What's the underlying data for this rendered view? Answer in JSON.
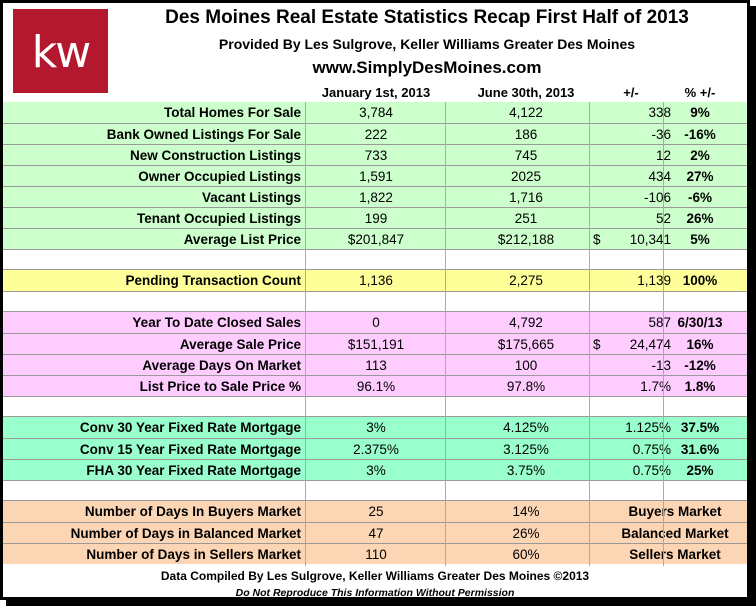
{
  "header": {
    "logo_text": "kw",
    "title": "Des Moines Real Estate Statistics Recap First Half of 2013",
    "subtitle": "Provided By Les Sulgrove, Keller Williams Greater Des Moines",
    "website": "www.SimplyDesMoines.com",
    "columns": [
      "January 1st, 2013",
      "June 30th, 2013",
      "+/-",
      "% +/-"
    ]
  },
  "sections": {
    "inventory": [
      {
        "label": "Total Homes For Sale",
        "jan": "3,784",
        "jun": "4,122",
        "diff": "338",
        "pct": "9%"
      },
      {
        "label": "Bank Owned Listings For Sale",
        "jan": "222",
        "jun": "186",
        "diff": "-36",
        "pct": "-16%"
      },
      {
        "label": "New Construction Listings",
        "jan": "733",
        "jun": "745",
        "diff": "12",
        "pct": "2%"
      },
      {
        "label": "Owner Occupied Listings",
        "jan": "1,591",
        "jun": "2025",
        "diff": "434",
        "pct": "27%"
      },
      {
        "label": "Vacant Listings",
        "jan": "1,822",
        "jun": "1,716",
        "diff": "-106",
        "pct": "-6%"
      },
      {
        "label": "Tenant Occupied Listings",
        "jan": "199",
        "jun": "251",
        "diff": "52",
        "pct": "26%"
      },
      {
        "label": "Average List Price",
        "jan": "$201,847",
        "jun": "$212,188",
        "dollar": "$",
        "diff": "10,341",
        "pct": "5%"
      }
    ],
    "pending": [
      {
        "label": "Pending Transaction Count",
        "jan": "1,136",
        "jun": "2,275",
        "diff": "1,139",
        "pct": "100%"
      }
    ],
    "sales": [
      {
        "label": "Year To Date Closed Sales",
        "jan": "0",
        "jun": "4,792",
        "diff": "587",
        "pct": "6/30/13"
      },
      {
        "label": "Average Sale Price",
        "jan": "$151,191",
        "jun": "$175,665",
        "dollar": "$",
        "diff": "24,474",
        "pct": "16%"
      },
      {
        "label": "Average Days On Market",
        "jan": "113",
        "jun": "100",
        "diff": "-13",
        "pct": "-12%"
      },
      {
        "label": "List Price to Sale Price %",
        "jan": "96.1%",
        "jun": "97.8%",
        "diff": "1.7%",
        "pct": "1.8%"
      }
    ],
    "rates": [
      {
        "label": "Conv 30 Year Fixed  Rate Mortgage",
        "jan": "3%",
        "jun": "4.125%",
        "diff": "1.125%",
        "pct": "37.5%"
      },
      {
        "label": "Conv 15 Year Fixed Rate Mortgage",
        "jan": "2.375%",
        "jun": "3.125%",
        "diff": "0.75%",
        "pct": "31.6%"
      },
      {
        "label": "FHA 30 Year Fixed Rate Mortgage",
        "jan": "3%",
        "jun": "3.75%",
        "diff": "0.75%",
        "pct": "25%"
      }
    ],
    "market": [
      {
        "label": "Number of Days In Buyers Market",
        "jan": "25",
        "jun": "14%",
        "diff": "Buyers Market"
      },
      {
        "label": "Number of Days in Balanced Market",
        "jan": "47",
        "jun": "26%",
        "diff": "Balanced Market"
      },
      {
        "label": "Number of Days in Sellers Market",
        "jan": "110",
        "jun": "60%",
        "diff": "Sellers Market"
      }
    ]
  },
  "footer": {
    "compiled": "Data Compiled By Les Sulgrove, Keller Williams Greater Des Moines  ©2013",
    "notice": "Do Not Reproduce This Information Without Permission"
  },
  "colors": {
    "inventory": "#ccffcc",
    "pending": "#ffff99",
    "sales": "#ffccff",
    "rates": "#99ffcc",
    "market": "#fcd5b4",
    "logo": "#b4182e"
  }
}
